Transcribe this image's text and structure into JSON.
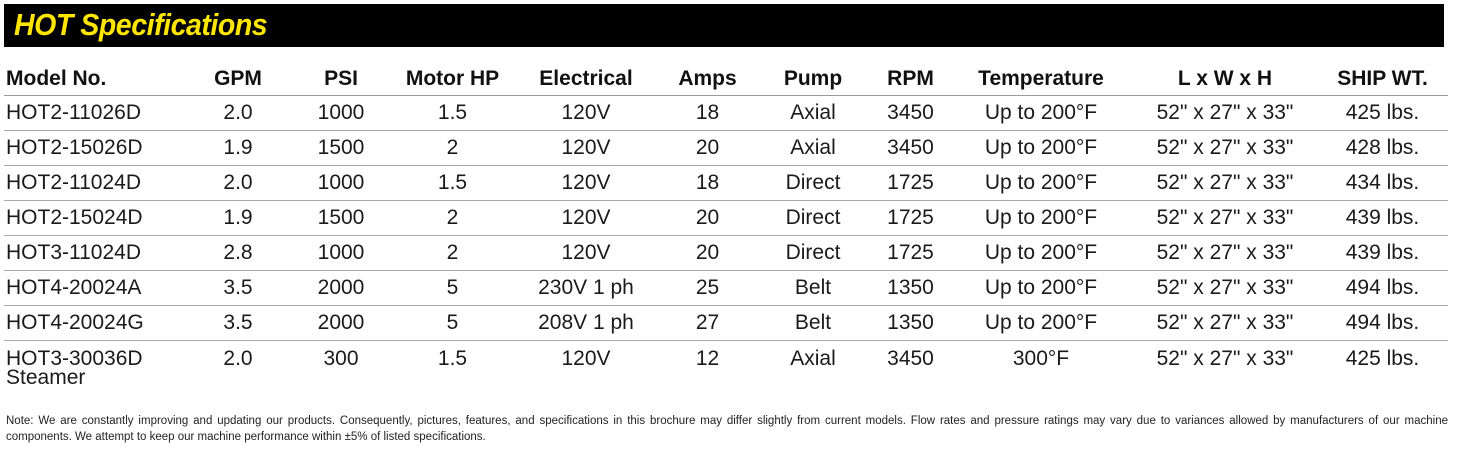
{
  "title": "HOT Specifications",
  "colors": {
    "title_background": "#000000",
    "title_text": "#ffe600"
  },
  "table": {
    "headers": {
      "model": "Model No.",
      "gpm": "GPM",
      "psi": "PSI",
      "motor_hp": "Motor HP",
      "electrical": "Electrical",
      "amps": "Amps",
      "pump": "Pump",
      "rpm": "RPM",
      "temperature": "Temperature",
      "dimensions": "L x W x H",
      "ship_wt": "SHIP WT."
    },
    "rows": [
      {
        "model": "HOT2-11026D",
        "model_sub": "",
        "gpm": "2.0",
        "psi": "1000",
        "motor_hp": "1.5",
        "electrical": "120V",
        "amps": "18",
        "pump": "Axial",
        "rpm": "3450",
        "temperature": "Up to 200°F",
        "dimensions": "52\" x 27\" x 33\"",
        "ship_wt": "425 lbs."
      },
      {
        "model": "HOT2-15026D",
        "model_sub": "",
        "gpm": "1.9",
        "psi": "1500",
        "motor_hp": "2",
        "electrical": "120V",
        "amps": "20",
        "pump": "Axial",
        "rpm": "3450",
        "temperature": "Up to 200°F",
        "dimensions": "52\" x 27\" x 33\"",
        "ship_wt": "428 lbs."
      },
      {
        "model": "HOT2-11024D",
        "model_sub": "",
        "gpm": "2.0",
        "psi": "1000",
        "motor_hp": "1.5",
        "electrical": "120V",
        "amps": "18",
        "pump": "Direct",
        "rpm": "1725",
        "temperature": "Up to 200°F",
        "dimensions": "52\" x 27\" x 33\"",
        "ship_wt": "434 lbs."
      },
      {
        "model": "HOT2-15024D",
        "model_sub": "",
        "gpm": "1.9",
        "psi": "1500",
        "motor_hp": "2",
        "electrical": "120V",
        "amps": "20",
        "pump": "Direct",
        "rpm": "1725",
        "temperature": "Up to 200°F",
        "dimensions": "52\" x 27\" x 33\"",
        "ship_wt": "439 lbs."
      },
      {
        "model": "HOT3-11024D",
        "model_sub": "",
        "gpm": "2.8",
        "psi": "1000",
        "motor_hp": "2",
        "electrical": "120V",
        "amps": "20",
        "pump": "Direct",
        "rpm": "1725",
        "temperature": "Up to 200°F",
        "dimensions": "52\" x 27\" x 33\"",
        "ship_wt": "439 lbs."
      },
      {
        "model": "HOT4-20024A",
        "model_sub": "",
        "gpm": "3.5",
        "psi": "2000",
        "motor_hp": "5",
        "electrical": "230V 1 ph",
        "amps": "25",
        "pump": "Belt",
        "rpm": "1350",
        "temperature": "Up to 200°F",
        "dimensions": "52\" x 27\" x 33\"",
        "ship_wt": "494 lbs."
      },
      {
        "model": "HOT4-20024G",
        "model_sub": "",
        "gpm": "3.5",
        "psi": "2000",
        "motor_hp": "5",
        "electrical": "208V 1 ph",
        "amps": "27",
        "pump": "Belt",
        "rpm": "1350",
        "temperature": "Up to 200°F",
        "dimensions": "52\" x 27\" x 33\"",
        "ship_wt": "494 lbs."
      },
      {
        "model": "HOT3-30036D",
        "model_sub": "Steamer",
        "gpm": "2.0",
        "psi": "300",
        "motor_hp": "1.5",
        "electrical": "120V",
        "amps": "12",
        "pump": "Axial",
        "rpm": "3450",
        "temperature": "300°F",
        "dimensions": "52\" x 27\" x 33\"",
        "ship_wt": "425 lbs."
      }
    ]
  },
  "note": "Note: We are constantly improving and updating our products. Consequently, pictures, features, and specifications in this brochure may differ slightly from current models. Flow rates and pressure ratings may vary due to variances allowed by manufacturers of our machine components. We attempt to keep our machine performance within ±5% of listed specifications."
}
